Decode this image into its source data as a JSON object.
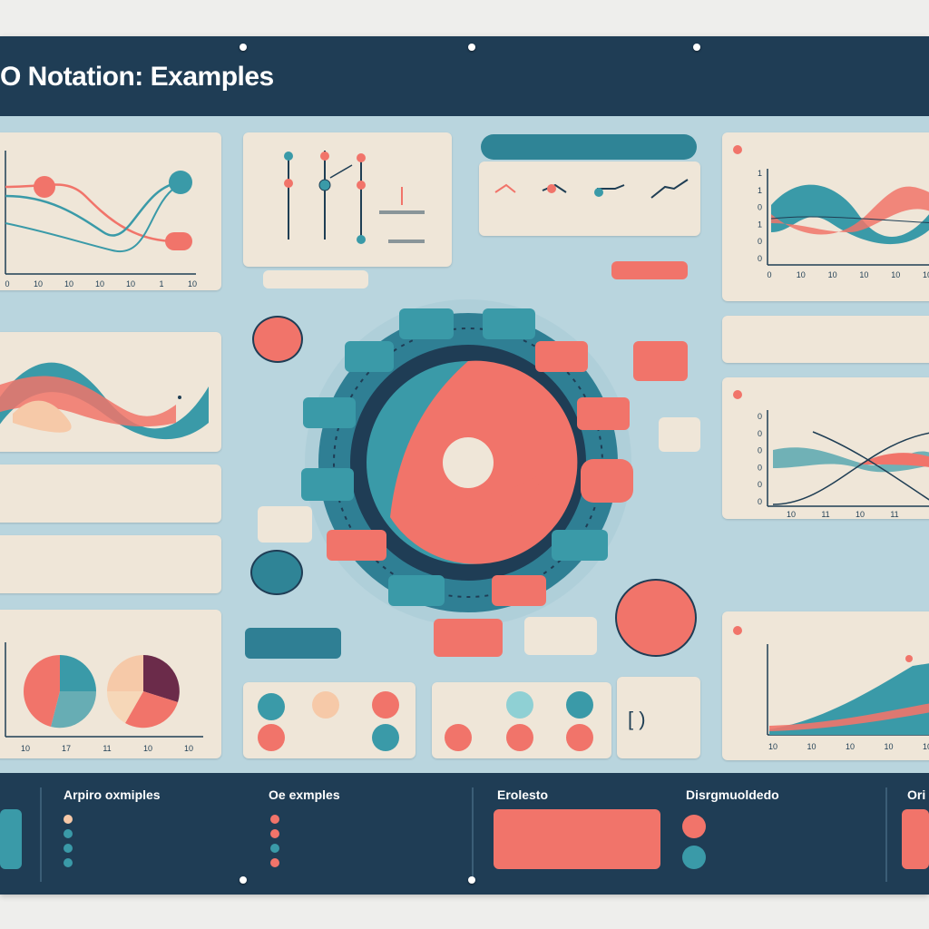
{
  "header": {
    "title": "O Notation:  Examples",
    "description": ""
  },
  "panels": {
    "top_left": {
      "x_ticks": [
        "0",
        "10",
        "10",
        "10",
        "10",
        "1",
        "10"
      ]
    },
    "top_mid_title": "",
    "top_right": {
      "y_ticks": [
        "1",
        "1",
        "0",
        "1",
        "0",
        "0"
      ],
      "x_ticks": [
        "0",
        "10",
        "10",
        "10",
        "10",
        "10"
      ]
    },
    "mid_right": {
      "y_ticks": [
        "0",
        "0",
        "0",
        "0",
        "0",
        "0"
      ],
      "x_ticks": [
        "10",
        "11",
        "10",
        "11"
      ]
    },
    "bottom_left": {
      "x_ticks": [
        "10",
        "17",
        "11",
        "10",
        "10"
      ]
    },
    "bottom_right": {
      "x_ticks": [
        "10",
        "10",
        "10",
        "10",
        "10"
      ]
    },
    "bracket_panel": {
      "symbol": "[ )"
    }
  },
  "footer": {
    "sections": [
      {
        "title": "Arpiro oxmiples"
      },
      {
        "title": "Oe exmples"
      },
      {
        "title": "Erolesto"
      },
      {
        "title": "Disrgmuoldedo"
      },
      {
        "title": "Ori"
      }
    ]
  },
  "colors": {
    "navy": "#1f3d55",
    "teal": "#3a9aa8",
    "coral": "#f1746a",
    "cream": "#efe6d8",
    "board": "#b9d5de"
  }
}
